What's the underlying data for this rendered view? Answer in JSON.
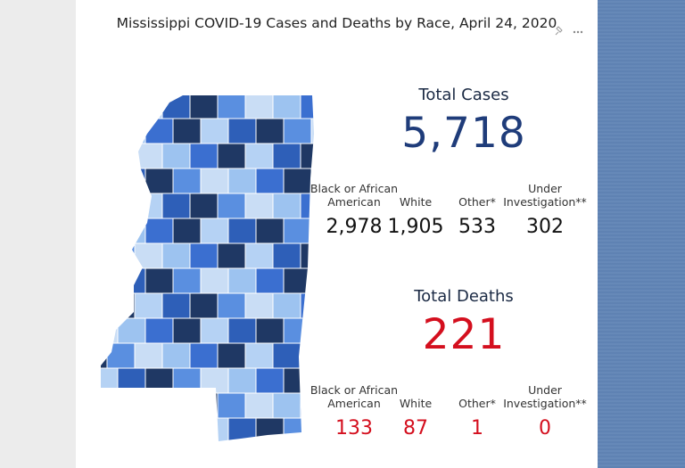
{
  "title": "Mississippi COVID-19 Cases and Deaths by Race, April 24, 2020",
  "cases": {
    "heading": "Total Cases",
    "total": "5,718",
    "breakdown": [
      {
        "label": "Black or African American",
        "value": "2,978"
      },
      {
        "label": "White",
        "value": "1,905"
      },
      {
        "label": "Other*",
        "value": "533"
      },
      {
        "label": "Under Investigation**",
        "value": "302"
      }
    ]
  },
  "deaths": {
    "heading": "Total Deaths",
    "total": "221",
    "breakdown": [
      {
        "label": "Black or African American",
        "value": "133"
      },
      {
        "label": "White",
        "value": "87"
      },
      {
        "label": "Other*",
        "value": "1"
      },
      {
        "label": "Under Investigation**",
        "value": "0"
      }
    ]
  }
}
